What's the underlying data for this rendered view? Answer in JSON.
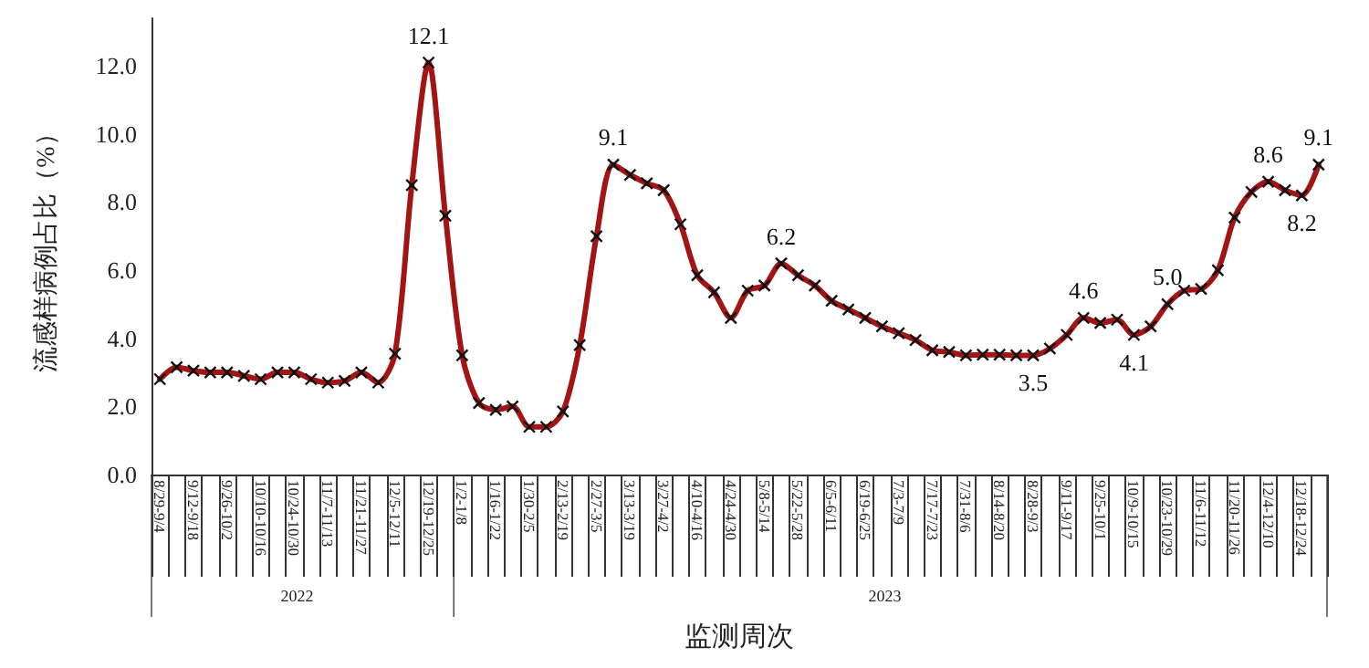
{
  "chart_data": {
    "type": "line",
    "xlabel": "监测周次",
    "ylabel": "流感样病例占比（%）",
    "categories": [
      "8/29-9/4",
      null,
      "9/12-9/18",
      null,
      "9/26-10/2",
      null,
      "10/10-10/16",
      null,
      "10/24-10/30",
      null,
      "11/7-11/13",
      null,
      "11/21-11/27",
      null,
      "12/5-12/11",
      null,
      "12/19-12/25",
      null,
      "1/2-1/8",
      null,
      "1/16-1/22",
      null,
      "1/30-2/5",
      null,
      "2/13-2/19",
      null,
      "2/27-3/5",
      null,
      "3/13-3/19",
      null,
      "3/27-4/2",
      null,
      "4/10-4/16",
      null,
      "4/24-4/30",
      null,
      "5/8-5/14",
      null,
      "5/22-5/28",
      null,
      "6/5-6/11",
      null,
      "6/19-6/25",
      null,
      "7/3-7/9",
      null,
      "7/17-7/23",
      null,
      "7/31-8/6",
      null,
      "8/14-8/20",
      null,
      "8/28-9/3",
      null,
      "9/11-9/17",
      null,
      "9/25-10/1",
      null,
      "10/9-10/15",
      null,
      "10/23-10/29",
      null,
      "11/6-11/12",
      null,
      "11/20-11/26",
      null,
      "12/4-12/10",
      null,
      "12/18-12/24",
      null
    ],
    "series": [
      {
        "color": "#a31515",
        "values": [
          2.8,
          3.15,
          3.05,
          3.0,
          3.0,
          2.9,
          2.8,
          3.0,
          3.0,
          2.8,
          2.7,
          2.75,
          3.0,
          2.7,
          3.55,
          8.5,
          12.1,
          7.6,
          3.5,
          2.1,
          1.9,
          2.0,
          1.4,
          1.4,
          1.85,
          3.8,
          7.0,
          9.1,
          8.8,
          8.55,
          8.35,
          7.35,
          5.85,
          5.35,
          4.6,
          5.4,
          5.55,
          6.2,
          5.85,
          5.55,
          5.1,
          4.85,
          4.6,
          4.35,
          4.15,
          3.95,
          3.65,
          3.6,
          3.5,
          3.52,
          3.52,
          3.5,
          3.5,
          3.7,
          4.1,
          4.6,
          4.45,
          4.55,
          4.1,
          4.35,
          5.0,
          5.4,
          5.45,
          6.0,
          7.55,
          8.3,
          8.6,
          8.35,
          8.2,
          9.1
        ],
        "value_labels": [
          null,
          null,
          null,
          null,
          null,
          null,
          null,
          null,
          null,
          null,
          null,
          null,
          null,
          null,
          null,
          null,
          "12.1",
          null,
          null,
          null,
          null,
          null,
          null,
          null,
          null,
          null,
          null,
          "9.1",
          null,
          null,
          null,
          null,
          null,
          null,
          null,
          null,
          null,
          "6.2",
          null,
          null,
          null,
          null,
          null,
          null,
          null,
          null,
          null,
          null,
          null,
          null,
          null,
          null,
          "3.5",
          null,
          null,
          "4.6",
          null,
          null,
          "4.1",
          null,
          "5.0",
          null,
          null,
          null,
          null,
          null,
          "8.6",
          null,
          "8.2",
          "9.1"
        ]
      }
    ],
    "ylim": [
      0,
      13.4
    ],
    "yticks": [
      {
        "value": 0,
        "label": "0.0"
      },
      {
        "value": 2,
        "label": "2.0"
      },
      {
        "value": 4,
        "label": "4.0"
      },
      {
        "value": 6,
        "label": "6.0"
      },
      {
        "value": 8,
        "label": "8.0"
      },
      {
        "value": 10,
        "label": "10.0"
      },
      {
        "value": 12,
        "label": "12.0"
      }
    ],
    "annotations": [
      "2022",
      "2023"
    ],
    "marker": "cross",
    "line_style": "solid"
  }
}
